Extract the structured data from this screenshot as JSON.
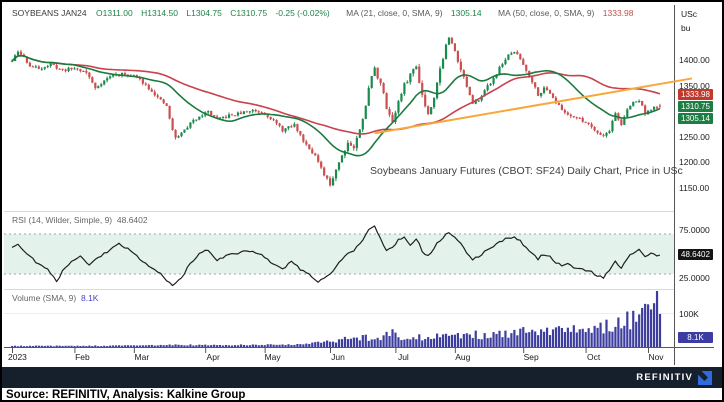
{
  "header": {
    "instrument": "SOYBEANS JAN24",
    "open": "O1311.00",
    "high": "H1314.50",
    "low": "L1304.75",
    "close": "C1310.75",
    "change": "-0.25 (-0.02%)",
    "ma21_label": "MA (21, close, 0, SMA, 9)",
    "ma21_value": "1305.14",
    "ma50_label": "MA (50, close, 0, SMA, 9)",
    "ma50_value": "1333.98"
  },
  "price_axis_units": {
    "top": "USc",
    "bottom": "bu"
  },
  "annotation": "Soybeans January Futures (CBOT: SF24) Daily Chart, Price in USc",
  "rsi_panel": {
    "label": "RSI (14, Wilder, Simple, 9)",
    "value": "48.6402",
    "upper": "75.0000",
    "lower": "25.0000"
  },
  "volume_panel": {
    "label": "Volume (SMA, 9)",
    "value": "8.1K",
    "gridline": "100K",
    "badge": "8.1K"
  },
  "footer": {
    "source": "Source: REFINITIV, Analysis: Kalkine Group",
    "brand": "REFINITIV"
  },
  "colors": {
    "up": "#1a8a4e",
    "down": "#ca4f4f",
    "ma21": "#1c7a3f",
    "ma50": "#c8424e",
    "trend": "#f6a83b",
    "rsi_line": "#1f1f1f",
    "rsi_band": "#e4f2ec",
    "rsi_dash": "#9aa8a0",
    "volume": "#3d3d9e",
    "badge_last": "#1e7d44",
    "badge_ma21": "#1e7d44",
    "badge_ma50": "#c0392b",
    "badge_rsi": "#141414",
    "badge_vol": "#3c3ca2",
    "grid": "#d9d9d9",
    "axis": "#555555",
    "brand_bar": "#16202d",
    "logo": "#2f6bdf"
  },
  "chart_data": {
    "type": "candlestick",
    "title": "Soybeans January Futures (CBOT: SF24) Daily Chart, Price in USc",
    "instrument": "SOYBEANS JAN24 (CBOT: SF24)",
    "interval": "Daily",
    "price_unit": "USc/bu",
    "x_range": [
      "Jan 2023",
      "Nov 2023"
    ],
    "days_total": 219,
    "months": [
      [
        "2023",
        0
      ],
      [
        "Feb",
        21
      ],
      [
        "Mar",
        41
      ],
      [
        "Apr",
        65
      ],
      [
        "May",
        85
      ],
      [
        "Jun",
        107
      ],
      [
        "Jul",
        129
      ],
      [
        "Aug",
        149
      ],
      [
        "Sep",
        172
      ],
      [
        "Oct",
        193
      ],
      [
        "Nov",
        214
      ]
    ],
    "price_axis": {
      "ticks": [
        1400,
        1350,
        1250,
        1200,
        1150
      ],
      "visible_range": [
        1110,
        1465
      ],
      "badges": [
        {
          "label": "1333.98",
          "type": "ma50"
        },
        {
          "label": "1310.75",
          "type": "last"
        },
        {
          "label": "1305.14",
          "type": "ma21"
        }
      ]
    },
    "last_bar": {
      "open": 1311.0,
      "high": 1314.5,
      "low": 1304.75,
      "close": 1310.75,
      "change": -0.25,
      "change_pct_text": "-0.02%"
    },
    "ma21_last": 1305.14,
    "ma50_last": 1333.98,
    "close_anchors": [
      [
        0,
        1398
      ],
      [
        2,
        1416
      ],
      [
        4,
        1405
      ],
      [
        6,
        1388
      ],
      [
        9,
        1384
      ],
      [
        13,
        1391
      ],
      [
        17,
        1380
      ],
      [
        21,
        1384
      ],
      [
        25,
        1376
      ],
      [
        28,
        1345
      ],
      [
        31,
        1360
      ],
      [
        34,
        1371
      ],
      [
        38,
        1372
      ],
      [
        41,
        1369
      ],
      [
        44,
        1357
      ],
      [
        47,
        1340
      ],
      [
        50,
        1320
      ],
      [
        52,
        1310
      ],
      [
        54,
        1262
      ],
      [
        55,
        1248
      ],
      [
        57,
        1257
      ],
      [
        60,
        1276
      ],
      [
        63,
        1291
      ],
      [
        66,
        1299
      ],
      [
        69,
        1284
      ],
      [
        73,
        1291
      ],
      [
        77,
        1296
      ],
      [
        81,
        1302
      ],
      [
        85,
        1297
      ],
      [
        88,
        1281
      ],
      [
        91,
        1263
      ],
      [
        95,
        1273
      ],
      [
        98,
        1243
      ],
      [
        102,
        1213
      ],
      [
        105,
        1174
      ],
      [
        107,
        1156
      ],
      [
        109,
        1188
      ],
      [
        111,
        1214
      ],
      [
        113,
        1239
      ],
      [
        115,
        1229
      ],
      [
        117,
        1263
      ],
      [
        119,
        1314
      ],
      [
        121,
        1370
      ],
      [
        122,
        1382
      ],
      [
        124,
        1355
      ],
      [
        126,
        1308
      ],
      [
        128,
        1280
      ],
      [
        130,
        1318
      ],
      [
        132,
        1350
      ],
      [
        134,
        1372
      ],
      [
        136,
        1388
      ],
      [
        138,
        1332
      ],
      [
        140,
        1294
      ],
      [
        142,
        1330
      ],
      [
        144,
        1382
      ],
      [
        146,
        1428
      ],
      [
        147,
        1442
      ],
      [
        149,
        1420
      ],
      [
        151,
        1382
      ],
      [
        153,
        1348
      ],
      [
        155,
        1312
      ],
      [
        157,
        1324
      ],
      [
        159,
        1340
      ],
      [
        161,
        1356
      ],
      [
        163,
        1374
      ],
      [
        165,
        1394
      ],
      [
        167,
        1408
      ],
      [
        169,
        1417
      ],
      [
        171,
        1402
      ],
      [
        173,
        1380
      ],
      [
        175,
        1358
      ],
      [
        177,
        1333
      ],
      [
        179,
        1344
      ],
      [
        181,
        1337
      ],
      [
        183,
        1318
      ],
      [
        185,
        1302
      ],
      [
        187,
        1294
      ],
      [
        189,
        1290
      ],
      [
        191,
        1284
      ],
      [
        193,
        1279
      ],
      [
        195,
        1270
      ],
      [
        197,
        1259
      ],
      [
        199,
        1252
      ],
      [
        201,
        1263
      ],
      [
        203,
        1296
      ],
      [
        205,
        1274
      ],
      [
        207,
        1302
      ],
      [
        209,
        1318
      ],
      [
        211,
        1321
      ],
      [
        213,
        1297
      ],
      [
        215,
        1303
      ],
      [
        217,
        1308
      ],
      [
        218,
        1311
      ]
    ],
    "trendline": {
      "from": [
        122,
        1257
      ],
      "to": [
        229,
        1364
      ]
    },
    "rsi": {
      "value": 48.6402,
      "upper": 75,
      "lower": 25,
      "anchors": [
        [
          0,
          57
        ],
        [
          2,
          63
        ],
        [
          5,
          50
        ],
        [
          8,
          40
        ],
        [
          12,
          30
        ],
        [
          15,
          16
        ],
        [
          17,
          28
        ],
        [
          20,
          42
        ],
        [
          23,
          47
        ],
        [
          26,
          36
        ],
        [
          29,
          46
        ],
        [
          33,
          55
        ],
        [
          36,
          62
        ],
        [
          39,
          56
        ],
        [
          42,
          47
        ],
        [
          45,
          38
        ],
        [
          48,
          30
        ],
        [
          51,
          22
        ],
        [
          54,
          10
        ],
        [
          56,
          16
        ],
        [
          58,
          26
        ],
        [
          60,
          38
        ],
        [
          63,
          50
        ],
        [
          66,
          55
        ],
        [
          69,
          43
        ],
        [
          73,
          49
        ],
        [
          77,
          52
        ],
        [
          81,
          54
        ],
        [
          85,
          47
        ],
        [
          88,
          37
        ],
        [
          91,
          30
        ],
        [
          94,
          41
        ],
        [
          97,
          31
        ],
        [
          100,
          24
        ],
        [
          103,
          16
        ],
        [
          106,
          21
        ],
        [
          109,
          34
        ],
        [
          112,
          47
        ],
        [
          115,
          55
        ],
        [
          118,
          68
        ],
        [
          120,
          80
        ],
        [
          122,
          86
        ],
        [
          124,
          70
        ],
        [
          126,
          54
        ],
        [
          128,
          58
        ],
        [
          130,
          68
        ],
        [
          132,
          72
        ],
        [
          134,
          61
        ],
        [
          136,
          70
        ],
        [
          138,
          54
        ],
        [
          140,
          47
        ],
        [
          142,
          58
        ],
        [
          144,
          67
        ],
        [
          146,
          74
        ],
        [
          147,
          76
        ],
        [
          149,
          70
        ],
        [
          151,
          62
        ],
        [
          153,
          52
        ],
        [
          155,
          43
        ],
        [
          157,
          47
        ],
        [
          159,
          53
        ],
        [
          161,
          58
        ],
        [
          163,
          63
        ],
        [
          165,
          67
        ],
        [
          167,
          70
        ],
        [
          169,
          72
        ],
        [
          171,
          66
        ],
        [
          173,
          58
        ],
        [
          175,
          50
        ],
        [
          177,
          44
        ],
        [
          179,
          50
        ],
        [
          181,
          46
        ],
        [
          183,
          40
        ],
        [
          185,
          35
        ],
        [
          187,
          38
        ],
        [
          189,
          33
        ],
        [
          191,
          31
        ],
        [
          193,
          29
        ],
        [
          195,
          27
        ],
        [
          197,
          23
        ],
        [
          199,
          21
        ],
        [
          201,
          29
        ],
        [
          203,
          41
        ],
        [
          205,
          31
        ],
        [
          207,
          44
        ],
        [
          209,
          52
        ],
        [
          211,
          57
        ],
        [
          213,
          46
        ],
        [
          215,
          52
        ],
        [
          217,
          47
        ],
        [
          218,
          48.64
        ]
      ]
    },
    "volume": {
      "sma": "8.1K",
      "grid_k": 100,
      "anchors": [
        [
          0,
          3
        ],
        [
          20,
          3
        ],
        [
          40,
          4
        ],
        [
          55,
          6
        ],
        [
          70,
          5
        ],
        [
          85,
          6
        ],
        [
          100,
          9
        ],
        [
          107,
          15
        ],
        [
          110,
          20
        ],
        [
          114,
          26
        ],
        [
          118,
          28
        ],
        [
          121,
          24
        ],
        [
          124,
          20
        ],
        [
          128,
          50
        ],
        [
          131,
          26
        ],
        [
          134,
          30
        ],
        [
          137,
          28
        ],
        [
          140,
          25
        ],
        [
          143,
          30
        ],
        [
          146,
          36
        ],
        [
          149,
          32
        ],
        [
          152,
          28
        ],
        [
          155,
          36
        ],
        [
          158,
          32
        ],
        [
          161,
          30
        ],
        [
          164,
          36
        ],
        [
          167,
          34
        ],
        [
          170,
          40
        ],
        [
          173,
          44
        ],
        [
          176,
          38
        ],
        [
          179,
          46
        ],
        [
          182,
          42
        ],
        [
          185,
          48
        ],
        [
          188,
          44
        ],
        [
          191,
          52
        ],
        [
          193,
          56
        ],
        [
          195,
          50
        ],
        [
          197,
          62
        ],
        [
          199,
          56
        ],
        [
          201,
          66
        ],
        [
          203,
          60
        ],
        [
          205,
          78
        ],
        [
          207,
          92
        ],
        [
          208,
          72
        ],
        [
          210,
          98
        ],
        [
          212,
          88
        ],
        [
          214,
          118
        ],
        [
          215,
          132
        ],
        [
          216,
          104
        ],
        [
          217,
          152
        ],
        [
          218,
          122
        ]
      ]
    }
  }
}
